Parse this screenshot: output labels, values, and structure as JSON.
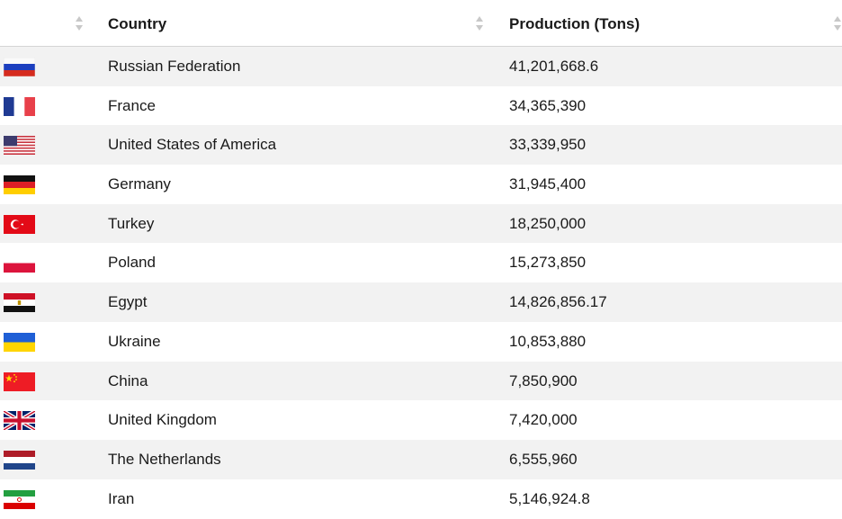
{
  "header": {
    "country_label": "Country",
    "production_label": "Production (Tons)"
  },
  "rows": [
    {
      "flag": "russia-flag-icon",
      "country": "Russian Federation",
      "production": "41,201,668.6"
    },
    {
      "flag": "france-flag-icon",
      "country": "France",
      "production": "34,365,390"
    },
    {
      "flag": "usa-flag-icon",
      "country": "United States of America",
      "production": "33,339,950"
    },
    {
      "flag": "germany-flag-icon",
      "country": "Germany",
      "production": "31,945,400"
    },
    {
      "flag": "turkey-flag-icon",
      "country": "Turkey",
      "production": "18,250,000"
    },
    {
      "flag": "poland-flag-icon",
      "country": "Poland",
      "production": "15,273,850"
    },
    {
      "flag": "egypt-flag-icon",
      "country": "Egypt",
      "production": "14,826,856.17"
    },
    {
      "flag": "ukraine-flag-icon",
      "country": "Ukraine",
      "production": "10,853,880"
    },
    {
      "flag": "china-flag-icon",
      "country": "China",
      "production": "7,850,900"
    },
    {
      "flag": "uk-flag-icon",
      "country": "United Kingdom",
      "production": "7,420,000"
    },
    {
      "flag": "netherlands-flag-icon",
      "country": "The Netherlands",
      "production": "6,555,960"
    },
    {
      "flag": "iran-flag-icon",
      "country": "Iran",
      "production": "5,146,924.8"
    }
  ],
  "colors": {
    "stripe": "#f2f2f2",
    "header_border": "#d4d4d4",
    "sort_icon": "#c8c8c8"
  }
}
